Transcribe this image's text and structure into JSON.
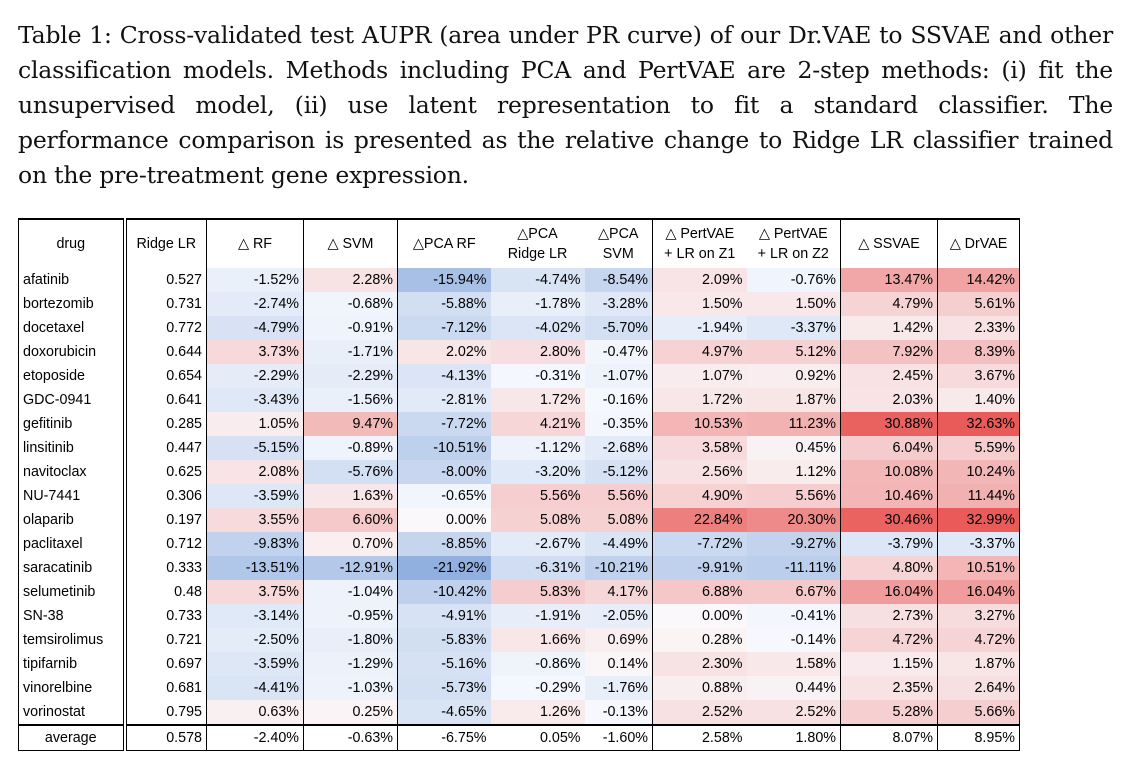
{
  "caption": "Table 1: Cross-validated test AUPR (area under PR curve) of our Dr.VAE to SSVAE and other classification models. Methods including PCA and PertVAE are 2-step methods: (i) fit the unsupervised model, (ii) use latent representation to fit a standard classifier. The performance comparison is presented as the relative change to Ridge LR classifier trained on the pre-treatment gene expression.",
  "table": {
    "headers": [
      [
        "drug"
      ],
      [
        "Ridge LR"
      ],
      [
        "△ RF"
      ],
      [
        "△ SVM"
      ],
      [
        "△PCA RF"
      ],
      [
        "△PCA",
        "Ridge LR"
      ],
      [
        "△PCA",
        "SVM"
      ],
      [
        "△ PertVAE",
        "+ LR on Z1"
      ],
      [
        "△ PertVAE",
        "+ LR on Z2"
      ],
      [
        "△ SSVAE"
      ],
      [
        "△ DrVAE"
      ]
    ],
    "rows": [
      [
        "afatinib",
        "0.527",
        "-1.52%",
        "2.28%",
        "-15.94%",
        "-4.74%",
        "-8.54%",
        "2.09%",
        "-0.76%",
        "13.47%",
        "14.42%"
      ],
      [
        "bortezomib",
        "0.731",
        "-2.74%",
        "-0.68%",
        "-5.88%",
        "-1.78%",
        "-3.28%",
        "1.50%",
        "1.50%",
        "4.79%",
        "5.61%"
      ],
      [
        "docetaxel",
        "0.772",
        "-4.79%",
        "-0.91%",
        "-7.12%",
        "-4.02%",
        "-5.70%",
        "-1.94%",
        "-3.37%",
        "1.42%",
        "2.33%"
      ],
      [
        "doxorubicin",
        "0.644",
        "3.73%",
        "-1.71%",
        "2.02%",
        "2.80%",
        "-0.47%",
        "4.97%",
        "5.12%",
        "7.92%",
        "8.39%"
      ],
      [
        "etoposide",
        "0.654",
        "-2.29%",
        "-2.29%",
        "-4.13%",
        "-0.31%",
        "-1.07%",
        "1.07%",
        "0.92%",
        "2.45%",
        "3.67%"
      ],
      [
        "GDC-0941",
        "0.641",
        "-3.43%",
        "-1.56%",
        "-2.81%",
        "1.72%",
        "-0.16%",
        "1.72%",
        "1.87%",
        "2.03%",
        "1.40%"
      ],
      [
        "gefitinib",
        "0.285",
        "1.05%",
        "9.47%",
        "-7.72%",
        "4.21%",
        "-0.35%",
        "10.53%",
        "11.23%",
        "30.88%",
        "32.63%"
      ],
      [
        "linsitinib",
        "0.447",
        "-5.15%",
        "-0.89%",
        "-10.51%",
        "-1.12%",
        "-2.68%",
        "3.58%",
        "0.45%",
        "6.04%",
        "5.59%"
      ],
      [
        "navitoclax",
        "0.625",
        "2.08%",
        "-5.76%",
        "-8.00%",
        "-3.20%",
        "-5.12%",
        "2.56%",
        "1.12%",
        "10.08%",
        "10.24%"
      ],
      [
        "NU-7441",
        "0.306",
        "-3.59%",
        "1.63%",
        "-0.65%",
        "5.56%",
        "5.56%",
        "4.90%",
        "5.56%",
        "10.46%",
        "11.44%"
      ],
      [
        "olaparib",
        "0.197",
        "3.55%",
        "6.60%",
        "0.00%",
        "5.08%",
        "5.08%",
        "22.84%",
        "20.30%",
        "30.46%",
        "32.99%"
      ],
      [
        "paclitaxel",
        "0.712",
        "-9.83%",
        "0.70%",
        "-8.85%",
        "-2.67%",
        "-4.49%",
        "-7.72%",
        "-9.27%",
        "-3.79%",
        "-3.37%"
      ],
      [
        "saracatinib",
        "0.333",
        "-13.51%",
        "-12.91%",
        "-21.92%",
        "-6.31%",
        "-10.21%",
        "-9.91%",
        "-11.11%",
        "4.80%",
        "10.51%"
      ],
      [
        "selumetinib",
        "0.48",
        "3.75%",
        "-1.04%",
        "-10.42%",
        "5.83%",
        "4.17%",
        "6.88%",
        "6.67%",
        "16.04%",
        "16.04%"
      ],
      [
        "SN-38",
        "0.733",
        "-3.14%",
        "-0.95%",
        "-4.91%",
        "-1.91%",
        "-2.05%",
        "0.00%",
        "-0.41%",
        "2.73%",
        "3.27%"
      ],
      [
        "temsirolimus",
        "0.721",
        "-2.50%",
        "-1.80%",
        "-5.83%",
        "1.66%",
        "0.69%",
        "0.28%",
        "-0.14%",
        "4.72%",
        "4.72%"
      ],
      [
        "tipifarnib",
        "0.697",
        "-3.59%",
        "-1.29%",
        "-5.16%",
        "-0.86%",
        "0.14%",
        "2.30%",
        "1.58%",
        "1.15%",
        "1.87%"
      ],
      [
        "vinorelbine",
        "0.681",
        "-4.41%",
        "-1.03%",
        "-5.73%",
        "-0.29%",
        "-1.76%",
        "0.88%",
        "0.44%",
        "2.35%",
        "2.64%"
      ],
      [
        "vorinostat",
        "0.795",
        "0.63%",
        "0.25%",
        "-4.65%",
        "1.26%",
        "-0.13%",
        "2.52%",
        "2.52%",
        "5.28%",
        "5.66%"
      ]
    ],
    "average": [
      "average",
      "0.578",
      "-2.40%",
      "-0.63%",
      "-6.75%",
      "0.05%",
      "-1.60%",
      "2.58%",
      "1.80%",
      "8.07%",
      "8.95%"
    ]
  }
}
